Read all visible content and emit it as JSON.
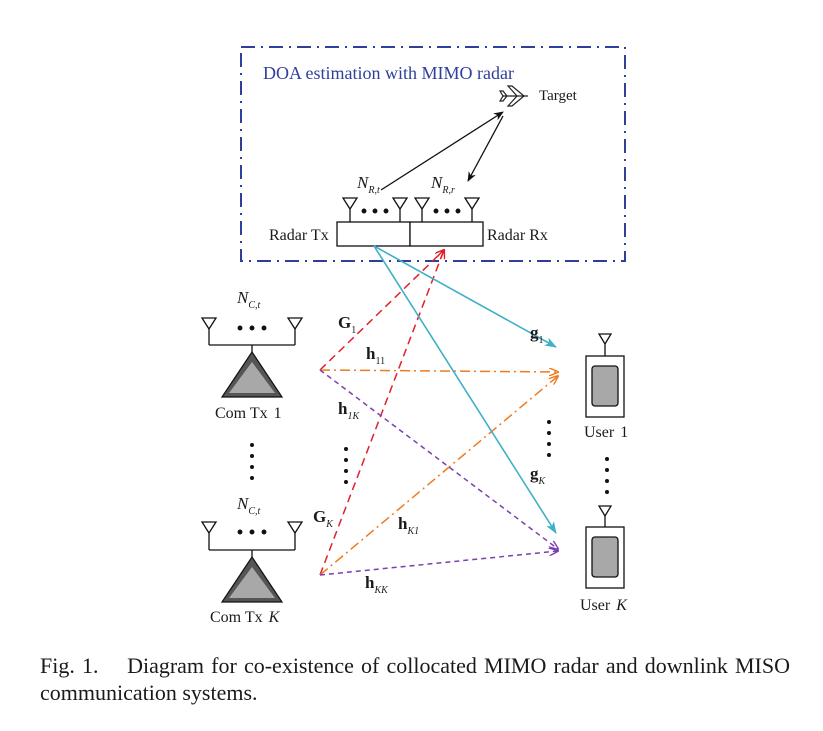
{
  "radar_box": {
    "title": "DOA estimation with MIMO radar",
    "border_color": "#2f3f9a"
  },
  "target": {
    "label": "Target"
  },
  "radar": {
    "tx_label": "Radar Tx",
    "rx_label": "Radar Rx",
    "tx_antennas": {
      "base": "N",
      "sub": "R,t"
    },
    "rx_antennas": {
      "base": "N",
      "sub": "R,r"
    }
  },
  "com_tx": [
    {
      "name": "Com Tx",
      "index": "1",
      "antennas": {
        "base": "N",
        "sub": "C,t"
      }
    },
    {
      "name": "Com Tx",
      "index": "K",
      "antennas": {
        "base": "N",
        "sub": "C,t"
      }
    }
  ],
  "users": [
    {
      "name": "User",
      "index": "1"
    },
    {
      "name": "User",
      "index": "K"
    }
  ],
  "channels": {
    "G1": {
      "base": "G",
      "sub": "1"
    },
    "GK": {
      "base": "G",
      "sub": "K"
    },
    "h11": {
      "base": "h",
      "sub": "11"
    },
    "h1K": {
      "base": "h",
      "sub": "1K"
    },
    "hK1": {
      "base": "h",
      "sub": "K1"
    },
    "hKK": {
      "base": "h",
      "sub": "KK"
    },
    "g1": {
      "base": "g",
      "sub": "1"
    },
    "gK": {
      "base": "g",
      "sub": "K"
    }
  },
  "colors": {
    "radar_interference": "#e0202a",
    "h_direct": "#f07a20",
    "h_cross": "#7a3fb0",
    "g_link": "#3fb0c8",
    "target_link": "#111111",
    "device_fill": "#a8a8a8"
  },
  "caption": {
    "label": "Fig. 1.",
    "text": "Diagram for co-existence of collocated MIMO radar and downlink MISO communication systems."
  }
}
